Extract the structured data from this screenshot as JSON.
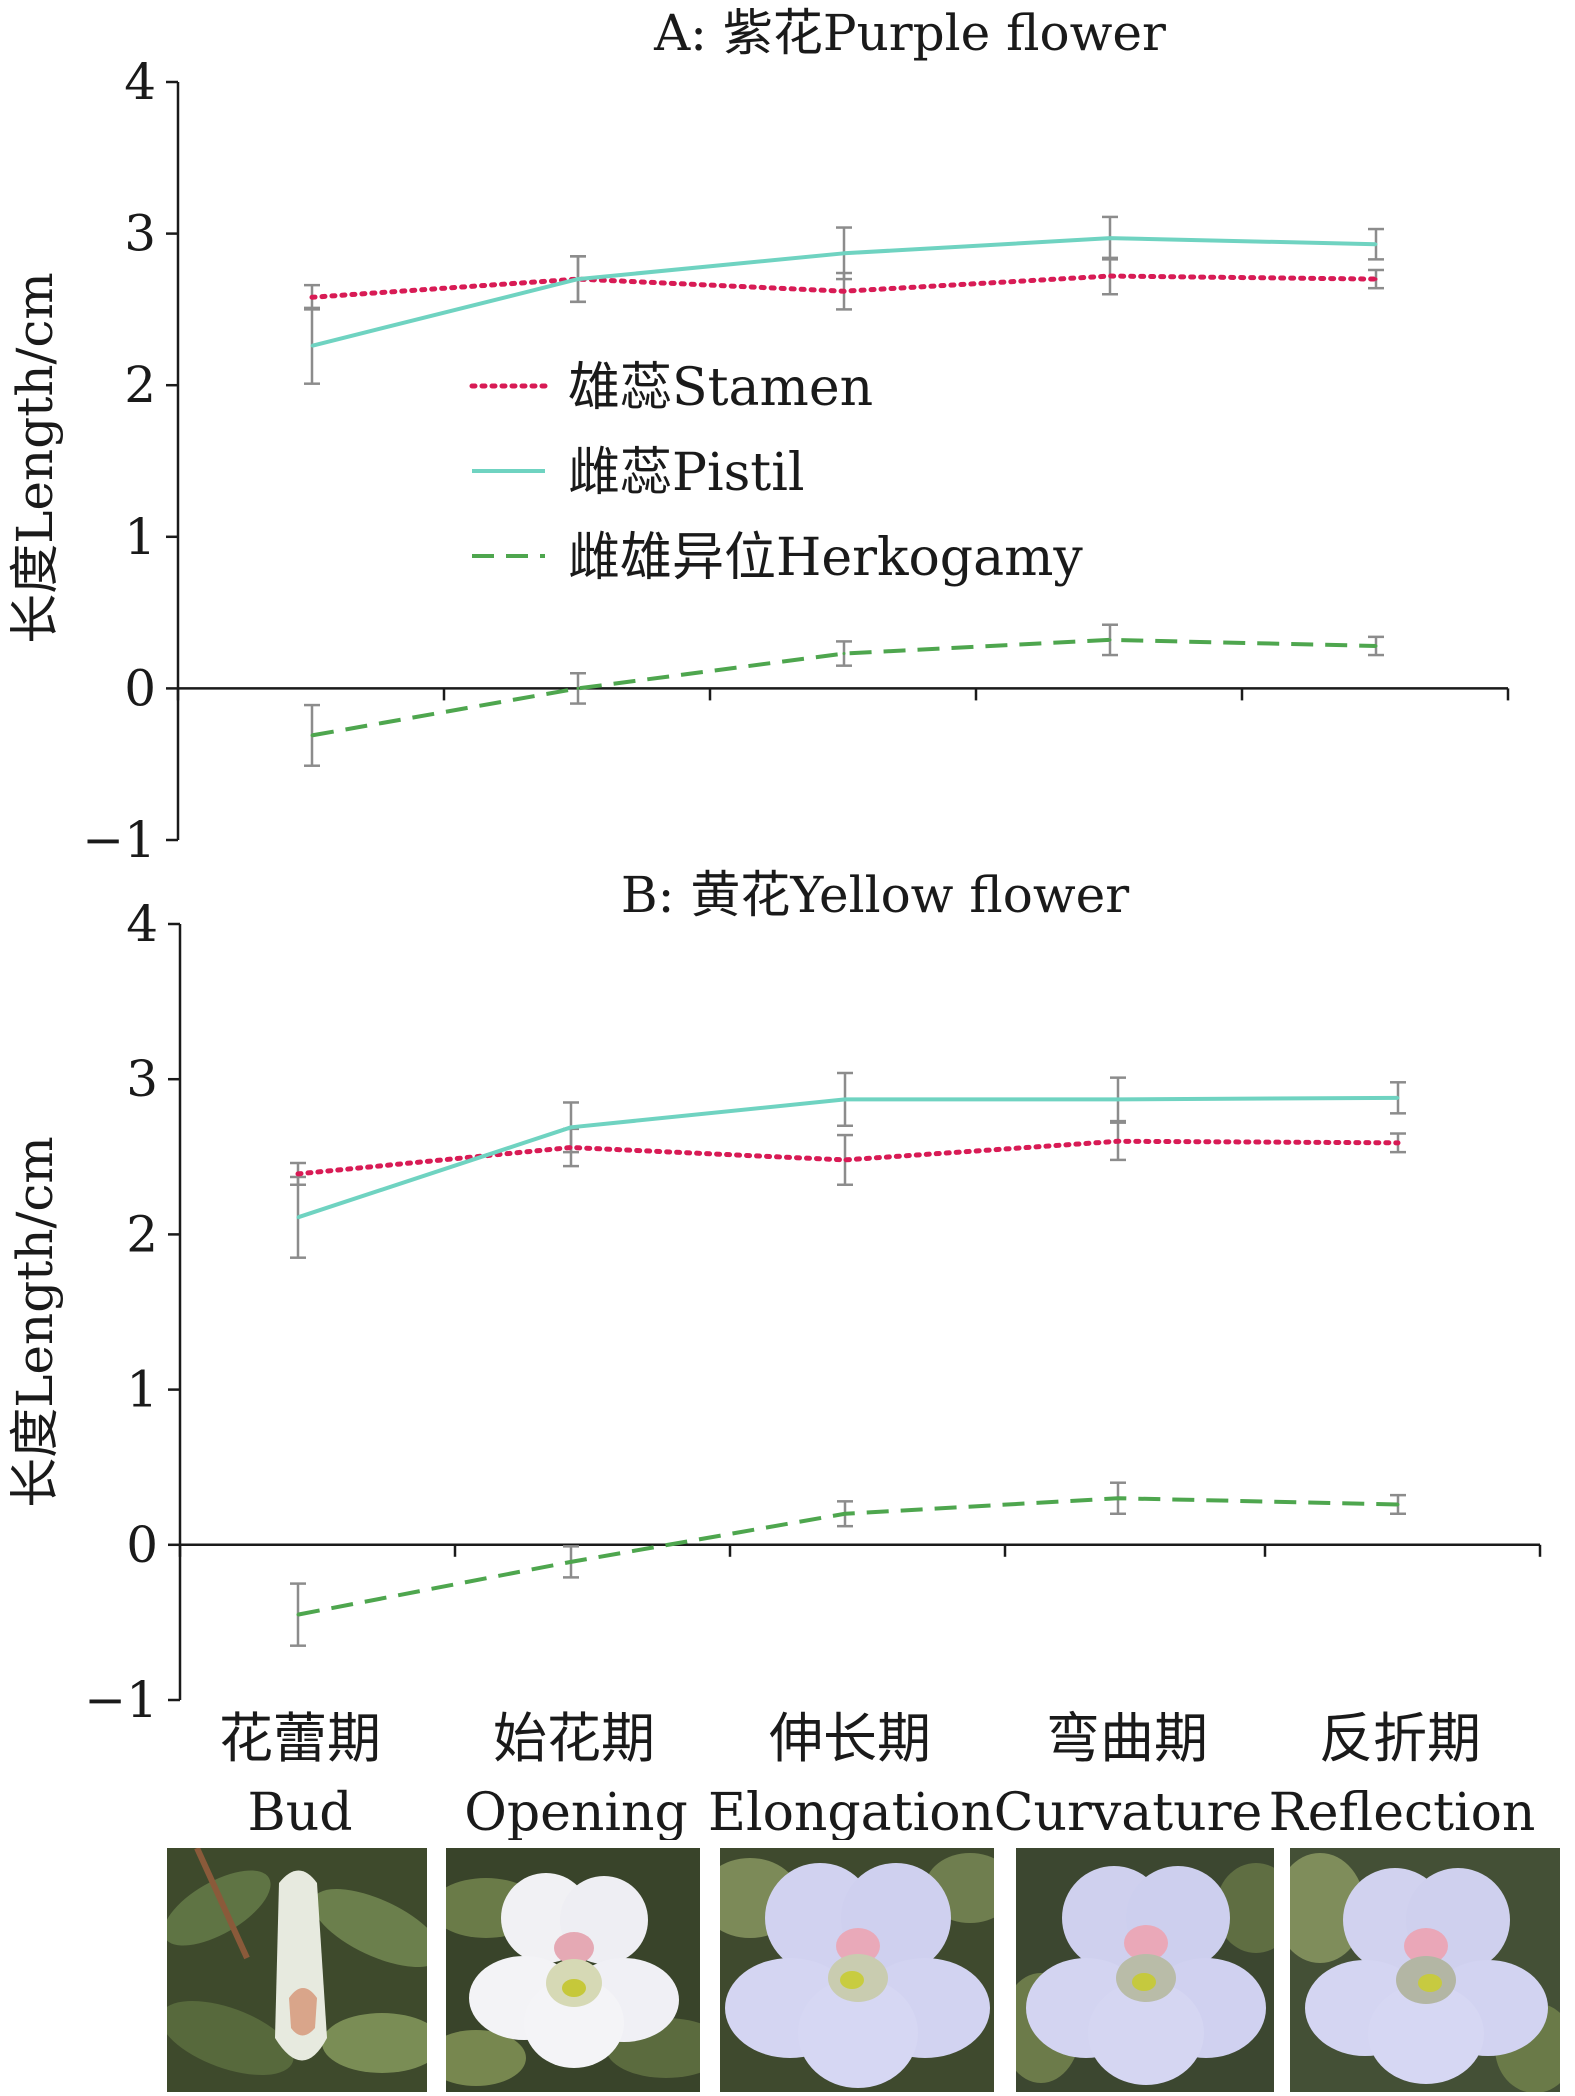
{
  "colors": {
    "stamen": "#d81b55",
    "pistil": "#6fd3c1",
    "herkogamy": "#4ea64e",
    "errorbar": "#8c8c8c",
    "axis": "#1a1a1a"
  },
  "legend": {
    "stamen": "雄蕊Stamen",
    "pistil": "雌蕊Pistil",
    "herkogamy": "雌雄异位Herkogamy"
  },
  "stages": [
    {
      "cn": "花蕾期",
      "en": "Bud"
    },
    {
      "cn": "始花期",
      "en": "Opening"
    },
    {
      "cn": "伸长期",
      "en": "Elongation"
    },
    {
      "cn": "弯曲期",
      "en": "Curvature"
    },
    {
      "cn": "反折期",
      "en": "Reflection"
    }
  ],
  "photos": [
    {
      "stage": "Bud",
      "icon": "flower-bud-photo"
    },
    {
      "stage": "Opening",
      "icon": "flower-opening-photo"
    },
    {
      "stage": "Elongation",
      "icon": "flower-elongation-photo"
    },
    {
      "stage": "Curvature",
      "icon": "flower-curvature-photo"
    },
    {
      "stage": "Reflection",
      "icon": "flower-reflection-photo"
    }
  ],
  "chart_data": [
    {
      "type": "line",
      "title": "A: 紫花Purple flower",
      "ylabel": "长度Length/cm",
      "xlabel": "",
      "ylim": [
        -1,
        4
      ],
      "yticks": [
        "−1",
        "0",
        "1",
        "2",
        "3",
        "4"
      ],
      "categories": [
        "Bud",
        "Opening",
        "Elongation",
        "Curvature",
        "Reflection"
      ],
      "series": [
        {
          "key": "stamen",
          "name": "雄蕊Stamen",
          "values": [
            2.58,
            2.7,
            2.62,
            2.72,
            2.7
          ],
          "err": [
            0.08,
            0.15,
            0.12,
            0.12,
            0.06
          ]
        },
        {
          "key": "pistil",
          "name": "雌蕊Pistil",
          "values": [
            2.26,
            2.7,
            2.87,
            2.97,
            2.93
          ],
          "err": [
            0.25,
            0.15,
            0.17,
            0.14,
            0.1
          ]
        },
        {
          "key": "herkogamy",
          "name": "雌雄异位Herkogamy",
          "values": [
            -0.31,
            0.0,
            0.23,
            0.32,
            0.28
          ],
          "err": [
            0.2,
            0.1,
            0.08,
            0.1,
            0.06
          ]
        }
      ]
    },
    {
      "type": "line",
      "title": "B: 黄花Yellow flower",
      "ylabel": "长度Length/cm",
      "xlabel": "",
      "ylim": [
        -1,
        4
      ],
      "yticks": [
        "−1",
        "0",
        "1",
        "2",
        "3",
        "4"
      ],
      "categories": [
        "Bud",
        "Opening",
        "Elongation",
        "Curvature",
        "Reflection"
      ],
      "series": [
        {
          "key": "stamen",
          "name": "雄蕊Stamen",
          "values": [
            2.39,
            2.56,
            2.48,
            2.6,
            2.59
          ],
          "err": [
            0.07,
            0.12,
            0.16,
            0.12,
            0.06
          ]
        },
        {
          "key": "pistil",
          "name": "雌蕊Pistil",
          "values": [
            2.11,
            2.69,
            2.87,
            2.87,
            2.88
          ],
          "err": [
            0.26,
            0.16,
            0.17,
            0.14,
            0.1
          ]
        },
        {
          "key": "herkogamy",
          "name": "雌雄异位Herkogamy",
          "values": [
            -0.45,
            -0.11,
            0.2,
            0.3,
            0.26
          ],
          "err": [
            0.2,
            0.1,
            0.08,
            0.1,
            0.06
          ]
        }
      ]
    }
  ]
}
